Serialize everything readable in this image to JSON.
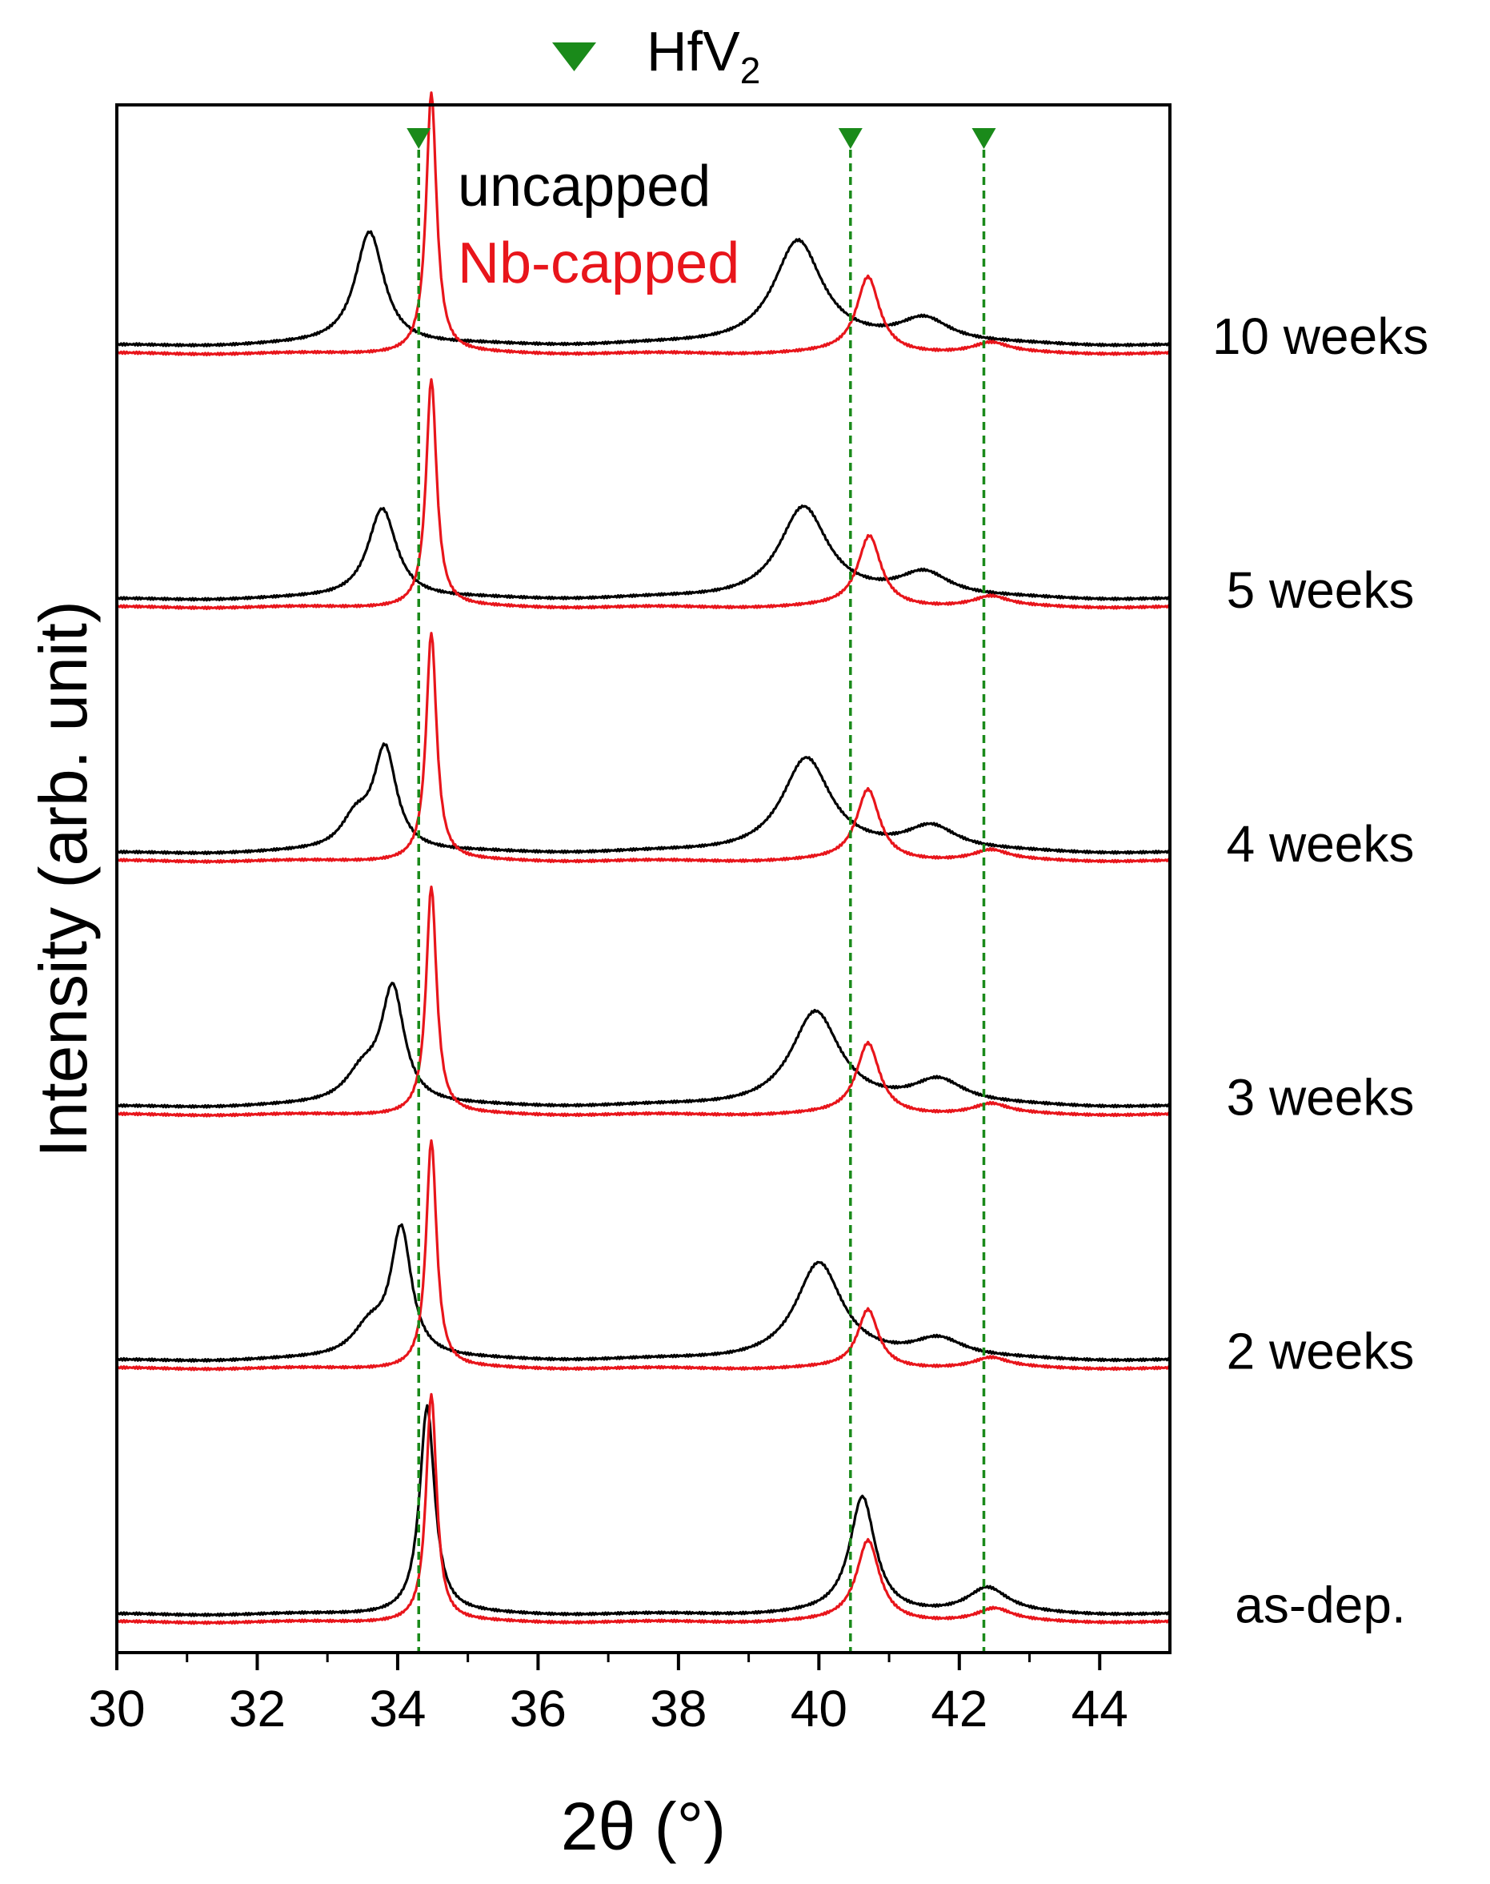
{
  "chart_data": {
    "type": "line",
    "title": "",
    "xlabel": "2θ (°)",
    "ylabel": "Intensity (arb. unit)",
    "xlim": [
      30,
      45
    ],
    "xticks": [
      "30",
      "32",
      "34",
      "36",
      "38",
      "40",
      "42",
      "44"
    ],
    "ylim": [
      0,
      6.1
    ],
    "grid": false,
    "legend": {
      "position": "top-center",
      "entries": [
        {
          "name": "uncapped",
          "color": "#000000"
        },
        {
          "name": "Nb-capped",
          "color": "#e8151b"
        }
      ]
    },
    "reference": {
      "label": "HfV",
      "label_subscript": "2",
      "marker": "down-triangle",
      "color": "#1a8a1a",
      "positions": [
        34.3,
        40.45,
        42.35
      ]
    },
    "peak_model": {
      "units": "degrees 2-theta, intensity in arbitrary units",
      "uncapped_baseline": 0.05,
      "nbcapped_baseline": 0.02
    },
    "series": [
      {
        "name": "as-dep.",
        "uncapped_peaks": [
          {
            "center": 34.42,
            "height": 0.82,
            "width": 0.13
          },
          {
            "center": 40.62,
            "height": 0.46,
            "width": 0.22
          },
          {
            "center": 42.4,
            "height": 0.1,
            "width": 0.35
          }
        ],
        "nbcapped_peaks": [
          {
            "center": 34.48,
            "height": 0.9,
            "width": 0.09
          },
          {
            "center": 40.7,
            "height": 0.32,
            "width": 0.2
          },
          {
            "center": 42.5,
            "height": 0.05,
            "width": 0.3
          }
        ]
      },
      {
        "name": "2 weeks",
        "uncapped_peaks": [
          {
            "center": 34.05,
            "height": 0.5,
            "width": 0.18
          },
          {
            "center": 33.6,
            "height": 0.12,
            "width": 0.3
          },
          {
            "center": 40.0,
            "height": 0.38,
            "width": 0.4
          },
          {
            "center": 41.7,
            "height": 0.08,
            "width": 0.45
          }
        ],
        "nbcapped_peaks": [
          {
            "center": 34.48,
            "height": 0.9,
            "width": 0.09
          },
          {
            "center": 40.7,
            "height": 0.23,
            "width": 0.18
          },
          {
            "center": 42.45,
            "height": 0.04,
            "width": 0.3
          }
        ]
      },
      {
        "name": "3 weeks",
        "uncapped_peaks": [
          {
            "center": 33.93,
            "height": 0.45,
            "width": 0.2
          },
          {
            "center": 33.5,
            "height": 0.12,
            "width": 0.3
          },
          {
            "center": 39.95,
            "height": 0.37,
            "width": 0.42
          },
          {
            "center": 41.7,
            "height": 0.1,
            "width": 0.45
          }
        ],
        "nbcapped_peaks": [
          {
            "center": 34.48,
            "height": 0.9,
            "width": 0.09
          },
          {
            "center": 40.7,
            "height": 0.28,
            "width": 0.2
          },
          {
            "center": 42.45,
            "height": 0.04,
            "width": 0.3
          }
        ]
      },
      {
        "name": "4 weeks",
        "uncapped_peaks": [
          {
            "center": 33.82,
            "height": 0.4,
            "width": 0.2
          },
          {
            "center": 33.4,
            "height": 0.12,
            "width": 0.25
          },
          {
            "center": 39.82,
            "height": 0.37,
            "width": 0.42
          },
          {
            "center": 41.6,
            "height": 0.1,
            "width": 0.45
          }
        ],
        "nbcapped_peaks": [
          {
            "center": 34.48,
            "height": 0.9,
            "width": 0.09
          },
          {
            "center": 40.7,
            "height": 0.28,
            "width": 0.2
          },
          {
            "center": 42.45,
            "height": 0.04,
            "width": 0.3
          }
        ]
      },
      {
        "name": "5 weeks",
        "uncapped_peaks": [
          {
            "center": 33.78,
            "height": 0.36,
            "width": 0.25
          },
          {
            "center": 39.78,
            "height": 0.36,
            "width": 0.42
          },
          {
            "center": 41.5,
            "height": 0.1,
            "width": 0.45
          }
        ],
        "nbcapped_peaks": [
          {
            "center": 34.48,
            "height": 0.9,
            "width": 0.09
          },
          {
            "center": 40.72,
            "height": 0.28,
            "width": 0.2
          },
          {
            "center": 42.45,
            "height": 0.04,
            "width": 0.3
          }
        ]
      },
      {
        "name": "10 weeks",
        "uncapped_peaks": [
          {
            "center": 33.6,
            "height": 0.45,
            "width": 0.25
          },
          {
            "center": 39.7,
            "height": 0.41,
            "width": 0.42
          },
          {
            "center": 41.5,
            "height": 0.1,
            "width": 0.45
          }
        ],
        "nbcapped_peaks": [
          {
            "center": 34.48,
            "height": 1.03,
            "width": 0.09
          },
          {
            "center": 40.7,
            "height": 0.3,
            "width": 0.2
          },
          {
            "center": 42.45,
            "height": 0.04,
            "width": 0.3
          }
        ]
      }
    ]
  }
}
